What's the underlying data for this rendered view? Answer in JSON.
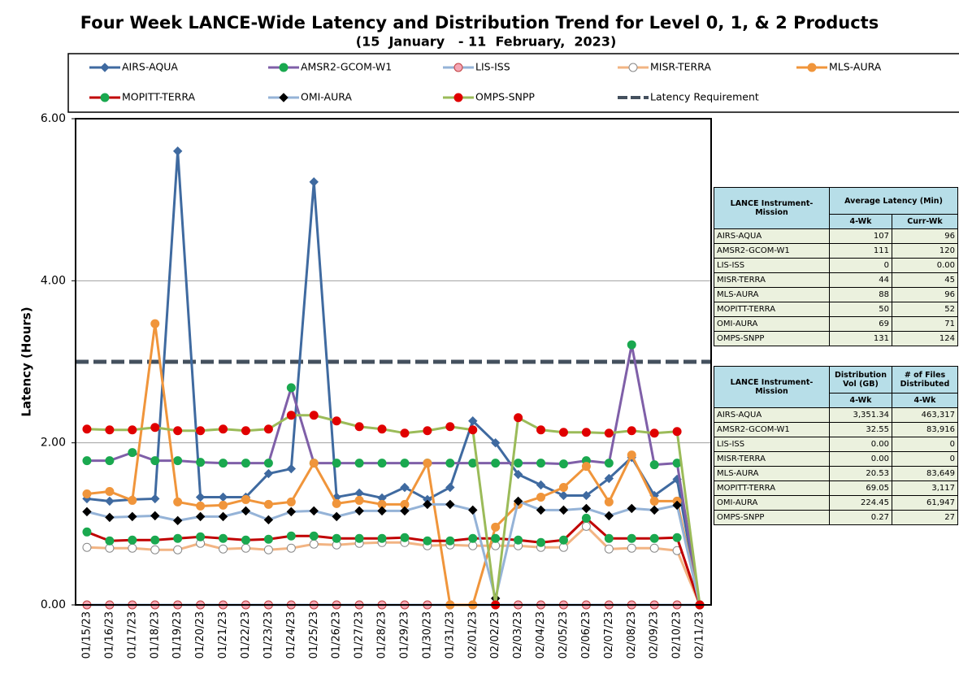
{
  "chart_data": {
    "type": "line",
    "title": "Four Week LANCE-Wide Latency and Distribution Trend for Level 0, 1, & 2 Products",
    "subtitle": "(15  January   - 11  February,  2023)",
    "y_label": "Latency (Hours)",
    "categories": [
      "01/15/23",
      "01/16/23",
      "01/17/23",
      "01/18/23",
      "01/19/23",
      "01/20/23",
      "01/21/23",
      "01/22/23",
      "01/23/23",
      "01/24/23",
      "01/25/23",
      "01/26/23",
      "01/27/23",
      "01/28/23",
      "01/29/23",
      "01/30/23",
      "01/31/23",
      "02/01/23",
      "02/02/23",
      "02/03/23",
      "02/04/23",
      "02/05/23",
      "02/06/23",
      "02/07/23",
      "02/08/23",
      "02/09/23",
      "02/10/23",
      "02/11/23"
    ],
    "ylim": [
      0,
      6
    ],
    "yticks": [
      {
        "value": 0,
        "label": "0.00"
      },
      {
        "value": 2,
        "label": "2.00"
      },
      {
        "value": 4,
        "label": "4.00"
      },
      {
        "value": 6,
        "label": "6.00"
      }
    ],
    "grid": true,
    "series": [
      {
        "name": "AIRS-AQUA",
        "color": "#3f6aa0",
        "marker": "diamond",
        "marker_color": "#3f6aa0",
        "values": [
          1.31,
          1.28,
          1.3,
          1.31,
          5.6,
          1.33,
          1.33,
          1.33,
          1.62,
          1.68,
          5.22,
          1.33,
          1.38,
          1.32,
          1.45,
          1.3,
          1.45,
          2.27,
          2.0,
          1.61,
          1.48,
          1.35,
          1.35,
          1.56,
          1.82,
          1.35,
          1.55,
          0
        ]
      },
      {
        "name": "AMSR2-GCOM-W1",
        "color": "#7f5fa8",
        "marker": "circle",
        "marker_color": "#1aa84f",
        "values": [
          1.78,
          1.78,
          1.88,
          1.78,
          1.78,
          1.76,
          1.75,
          1.75,
          1.75,
          2.68,
          1.75,
          1.75,
          1.75,
          1.75,
          1.75,
          1.75,
          1.75,
          1.75,
          1.75,
          1.75,
          1.75,
          1.74,
          1.78,
          1.75,
          3.21,
          1.73,
          1.75,
          0
        ]
      },
      {
        "name": "LIS-ISS",
        "color": "#95b3d7",
        "marker": "circle",
        "marker_color": "#f4a6b4",
        "values": [
          0,
          0,
          0,
          0,
          0,
          0,
          0,
          0,
          0,
          0,
          0,
          0,
          0,
          0,
          0,
          0,
          0,
          0,
          0,
          0,
          0,
          0,
          0,
          0,
          0,
          0,
          0,
          0
        ]
      },
      {
        "name": "MISR-TERRA",
        "color": "#f2b483",
        "marker": "circle",
        "marker_color": "#ffffff",
        "values": [
          0.71,
          0.7,
          0.7,
          0.68,
          0.68,
          0.76,
          0.69,
          0.7,
          0.68,
          0.7,
          0.75,
          0.74,
          0.76,
          0.77,
          0.77,
          0.73,
          0.74,
          0.73,
          0.73,
          0.73,
          0.71,
          0.71,
          0.97,
          0.69,
          0.7,
          0.7,
          0.67,
          0
        ]
      },
      {
        "name": "MLS-AURA",
        "color": "#f0953b",
        "marker": "circle",
        "marker_color": "#f0953b",
        "values": [
          1.37,
          1.4,
          1.29,
          3.47,
          1.27,
          1.22,
          1.23,
          1.3,
          1.24,
          1.27,
          1.75,
          1.25,
          1.29,
          1.24,
          1.24,
          1.75,
          0,
          0,
          0.96,
          1.24,
          1.33,
          1.45,
          1.71,
          1.27,
          1.85,
          1.28,
          1.28,
          0
        ]
      },
      {
        "name": "MOPITT-TERRA",
        "color": "#c00000",
        "marker": "circle",
        "marker_color": "#1aa84f",
        "values": [
          0.9,
          0.79,
          0.8,
          0.8,
          0.82,
          0.84,
          0.82,
          0.8,
          0.81,
          0.85,
          0.85,
          0.82,
          0.82,
          0.82,
          0.83,
          0.79,
          0.79,
          0.82,
          0.82,
          0.8,
          0.77,
          0.8,
          1.07,
          0.82,
          0.82,
          0.82,
          0.83,
          0
        ]
      },
      {
        "name": "OMI-AURA",
        "color": "#95b3d7",
        "marker": "diamond",
        "marker_color": "#000000",
        "values": [
          1.15,
          1.08,
          1.09,
          1.1,
          1.04,
          1.09,
          1.09,
          1.16,
          1.05,
          1.15,
          1.16,
          1.09,
          1.16,
          1.16,
          1.16,
          1.24,
          1.24,
          1.17,
          0.08,
          1.28,
          1.17,
          1.17,
          1.19,
          1.1,
          1.19,
          1.17,
          1.23,
          0
        ]
      },
      {
        "name": "OMPS-SNPP",
        "color": "#9bbb59",
        "marker": "circle",
        "marker_color": "#e00000",
        "values": [
          2.17,
          2.16,
          2.16,
          2.19,
          2.15,
          2.15,
          2.17,
          2.15,
          2.17,
          2.34,
          2.34,
          2.27,
          2.2,
          2.17,
          2.12,
          2.15,
          2.2,
          2.16,
          0,
          2.31,
          2.16,
          2.13,
          2.13,
          2.12,
          2.15,
          2.12,
          2.14,
          0
        ]
      }
    ],
    "latency_requirement": {
      "name": "Latency Requirement",
      "value": 3,
      "color": "#44505e"
    }
  },
  "tables": [
    {
      "header": [
        "LANCE Instrument-Mission",
        "Average Latency (Min)"
      ],
      "subheader": [
        "4-Wk",
        "Curr-Wk"
      ],
      "rows": [
        [
          "AIRS-AQUA",
          "107",
          "96"
        ],
        [
          "AMSR2-GCOM-W1",
          "111",
          "120"
        ],
        [
          "LIS-ISS",
          "0",
          "0.00"
        ],
        [
          "MISR-TERRA",
          "44",
          "45"
        ],
        [
          "MLS-AURA",
          "88",
          "96"
        ],
        [
          "MOPITT-TERRA",
          "50",
          "52"
        ],
        [
          "OMI-AURA",
          "69",
          "71"
        ],
        [
          "OMPS-SNPP",
          "131",
          "124"
        ]
      ]
    },
    {
      "header": [
        "LANCE Instrument-Mission",
        "Distribution Vol (GB)",
        "# of Files Distributed"
      ],
      "subheader": [
        "4-Wk",
        "4-Wk"
      ],
      "rows": [
        [
          "AIRS-AQUA",
          "3,351.34",
          "463,317"
        ],
        [
          "AMSR2-GCOM-W1",
          "32.55",
          "83,916"
        ],
        [
          "LIS-ISS",
          "0.00",
          "0"
        ],
        [
          "MISR-TERRA",
          "0.00",
          "0"
        ],
        [
          "MLS-AURA",
          "20.53",
          "83,649"
        ],
        [
          "MOPITT-TERRA",
          "69.05",
          "3,117"
        ],
        [
          "OMI-AURA",
          "224.45",
          "61,947"
        ],
        [
          "OMPS-SNPP",
          "0.27",
          "27"
        ]
      ]
    }
  ]
}
